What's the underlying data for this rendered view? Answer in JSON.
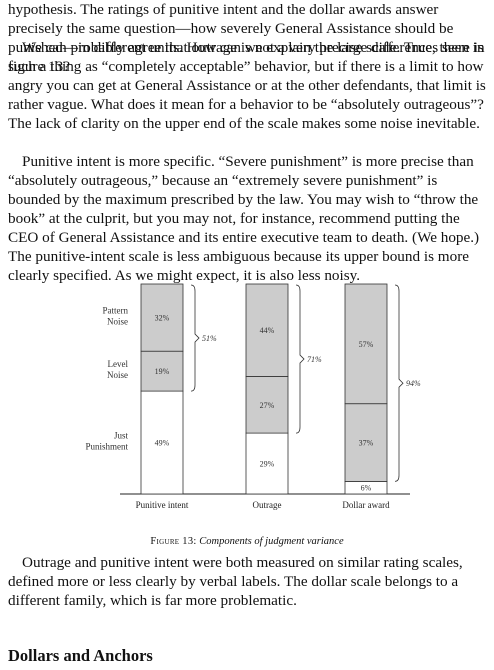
{
  "paragraphs": [
    "hypothesis. The ratings of punitive intent and the dollar awards answer precisely the same question—how severely General Assistance should be punished—in different units. How can we explain the large differences seen in figure 13?",
    "We can probably agree that outrage is not a very precise scale. True, there is such a thing as “completely acceptable” behavior, but if there is a limit to how angry you can get at General Assistance or at the other defendants, that limit is rather vague. What does it mean for a behavior to be “absolutely outrageous”? The lack of clarity on the upper end of the scale makes some noise inevitable.",
    "Punitive intent is more specific. “Severe punishment” is more precise than “absolutely outrageous,” because an “extremely severe punishment” is bounded by the maximum prescribed by the law. You may wish to “throw the book” at the culprit, but you may not, for instance, recommend putting the CEO of General Assistance and its entire executive team to death. (We hope.) The punitive-intent scale is less ambiguous because its upper bound is more clearly specified. As we might expect, it is also less noisy.",
    "Outrage and punitive intent were both measured on similar rating scales, defined more or less clearly by verbal labels. The dollar scale belongs to a different family, which is far more problematic."
  ],
  "heading": "Dollars and Anchors",
  "figure": {
    "label": "Figure 13:",
    "title": "Components of judgment variance"
  },
  "chart_data": {
    "type": "bar",
    "stacked": true,
    "categories": [
      "Punitive intent",
      "Outrage",
      "Dollar award"
    ],
    "series": [
      {
        "name": "Just Punishment",
        "values": [
          49,
          29,
          6
        ],
        "color": "#ffffff"
      },
      {
        "name": "Level Noise",
        "values": [
          19,
          27,
          37
        ],
        "color": "#cccccc"
      },
      {
        "name": "Pattern Noise",
        "values": [
          32,
          44,
          57
        ],
        "color": "#cccccc"
      }
    ],
    "segment_labels": [
      [
        "49%",
        "19%",
        "32%"
      ],
      [
        "29%",
        "27%",
        "44%"
      ],
      [
        "6%",
        "37%",
        "57%"
      ]
    ],
    "brackets": [
      "51%",
      "71%",
      "94%"
    ],
    "row_labels": [
      [
        "Pattern",
        "Noise"
      ],
      [
        "Level",
        "Noise"
      ],
      [
        "Just",
        "Punishment"
      ]
    ],
    "ylim": [
      0,
      100
    ]
  }
}
